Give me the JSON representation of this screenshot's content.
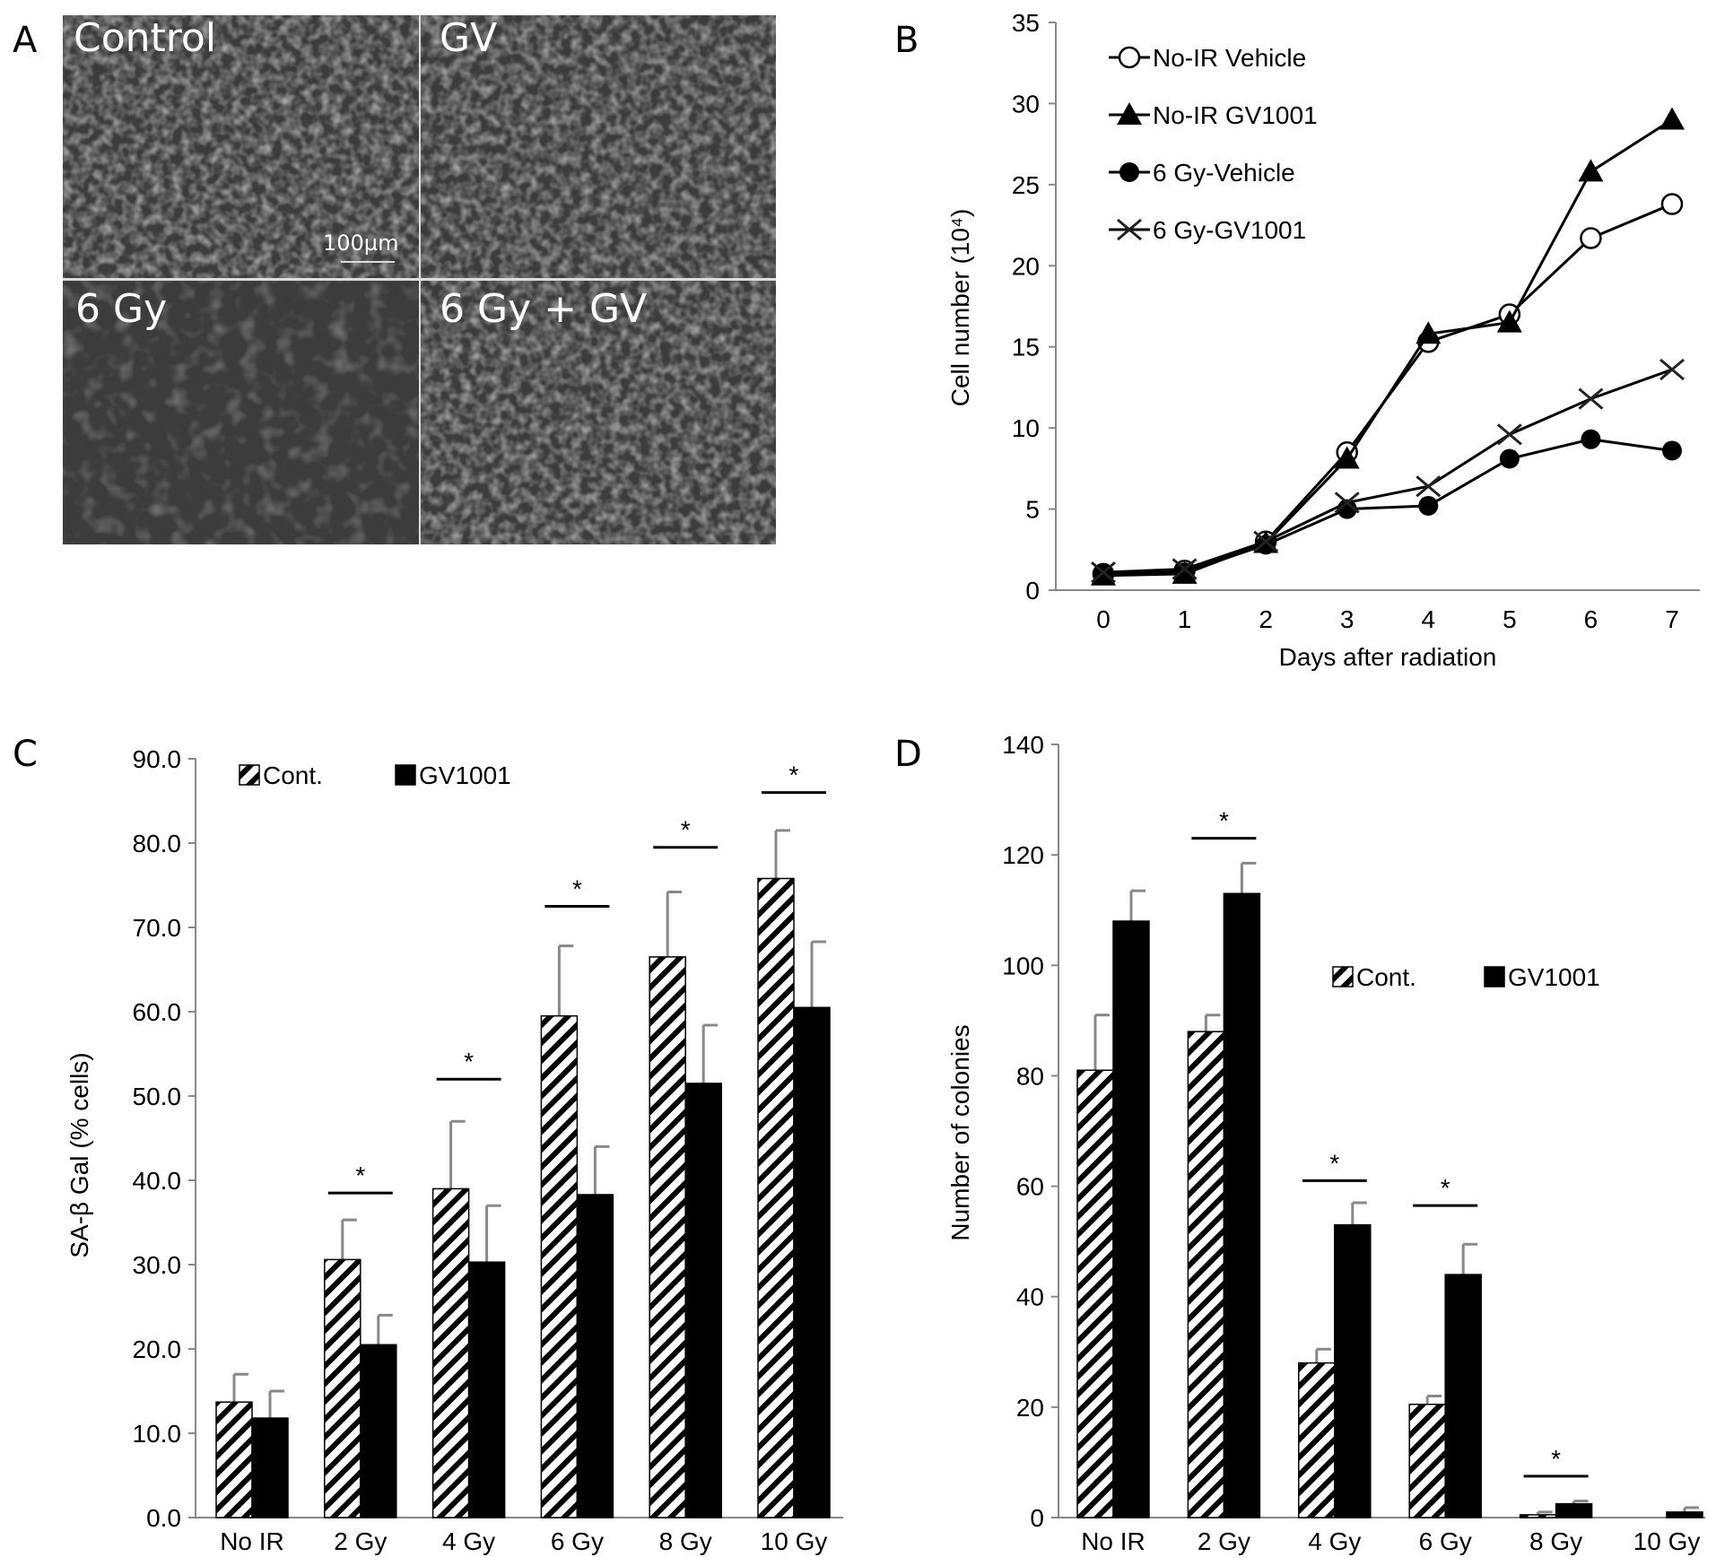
{
  "panel_labels": {
    "a": "A",
    "b": "B",
    "c": "C",
    "d": "D"
  },
  "micrographs": {
    "labels": [
      "Control",
      "GV",
      "6 Gy",
      "6 Gy + GV"
    ],
    "scale_bar": "100µm"
  },
  "chart_data": [
    {
      "id": "B",
      "type": "line",
      "title": "",
      "xlabel": "Days after radiation",
      "ylabel": "Cell number (10⁴)",
      "x": [
        0,
        1,
        2,
        3,
        4,
        5,
        6,
        7
      ],
      "ylim": [
        0,
        35
      ],
      "yticks": [
        0,
        5,
        10,
        15,
        20,
        25,
        30,
        35
      ],
      "legend_position": "top-left",
      "series": [
        {
          "name": "No-IR Vehicle",
          "marker": "open-circle",
          "values": [
            1.0,
            1.2,
            3.0,
            8.5,
            15.3,
            17.0,
            21.7,
            23.8
          ]
        },
        {
          "name": "No-IR GV1001",
          "marker": "filled-triangle",
          "values": [
            0.9,
            1.0,
            2.9,
            8.1,
            15.8,
            16.5,
            25.8,
            29.0
          ]
        },
        {
          "name": "6 Gy-Vehicle",
          "marker": "filled-circle",
          "values": [
            1.0,
            1.1,
            2.8,
            5.0,
            5.2,
            8.1,
            9.3,
            8.6
          ]
        },
        {
          "name": "6 Gy-GV1001",
          "marker": "x",
          "values": [
            1.1,
            1.3,
            3.0,
            5.4,
            6.4,
            9.6,
            11.8,
            13.6
          ]
        }
      ]
    },
    {
      "id": "C",
      "type": "bar",
      "xlabel": "",
      "ylabel": "SA-β Gal (% cells)",
      "ylim": [
        0,
        90
      ],
      "yticks": [
        "0.0",
        "10.0",
        "20.0",
        "30.0",
        "40.0",
        "50.0",
        "60.0",
        "70.0",
        "80.0",
        "90.0"
      ],
      "categories": [
        "No IR",
        "2 Gy",
        "4 Gy",
        "6 Gy",
        "8 Gy",
        "10 Gy"
      ],
      "legend_position": "top-left",
      "series": [
        {
          "name": "Cont.",
          "fill": "hatched",
          "values": [
            13.7,
            30.6,
            39.0,
            59.5,
            66.5,
            75.8
          ],
          "error": [
            3.3,
            4.7,
            8.0,
            8.3,
            7.7,
            5.7
          ]
        },
        {
          "name": "GV1001",
          "fill": "black",
          "values": [
            11.8,
            20.5,
            30.3,
            38.3,
            51.5,
            60.5
          ],
          "error": [
            3.2,
            3.5,
            6.7,
            5.7,
            6.9,
            7.8
          ]
        }
      ],
      "significance": [
        {
          "category": "2 Gy",
          "label": "*",
          "y": 38.5
        },
        {
          "category": "4 Gy",
          "label": "*",
          "y": 52
        },
        {
          "category": "6 Gy",
          "label": "*",
          "y": 72.5
        },
        {
          "category": "8 Gy",
          "label": "*",
          "y": 79.5
        },
        {
          "category": "10 Gy",
          "label": "*",
          "y": 86
        }
      ]
    },
    {
      "id": "D",
      "type": "bar",
      "xlabel": "",
      "ylabel": "Number of colonies",
      "ylim": [
        0,
        140
      ],
      "yticks": [
        "0",
        "20",
        "40",
        "60",
        "80",
        "100",
        "120",
        "140"
      ],
      "categories": [
        "No IR",
        "2 Gy",
        "4 Gy",
        "6 Gy",
        "8 Gy",
        "10 Gy"
      ],
      "legend_position": "center-right",
      "series": [
        {
          "name": "Cont.",
          "fill": "hatched",
          "values": [
            81,
            88,
            28,
            20.5,
            0.5,
            0
          ],
          "error": [
            10,
            3,
            2.5,
            1.5,
            0.5,
            0
          ]
        },
        {
          "name": "GV1001",
          "fill": "black",
          "values": [
            108,
            113,
            53,
            44,
            2.5,
            1
          ],
          "error": [
            5.5,
            5.5,
            4,
            5.5,
            0.5,
            0.8
          ]
        }
      ],
      "significance": [
        {
          "category": "2 Gy",
          "label": "*",
          "y": 123
        },
        {
          "category": "4 Gy",
          "label": "*",
          "y": 61
        },
        {
          "category": "6 Gy",
          "label": "*",
          "y": 56.5
        },
        {
          "category": "8 Gy",
          "label": "*",
          "y": 7.5
        }
      ]
    }
  ]
}
